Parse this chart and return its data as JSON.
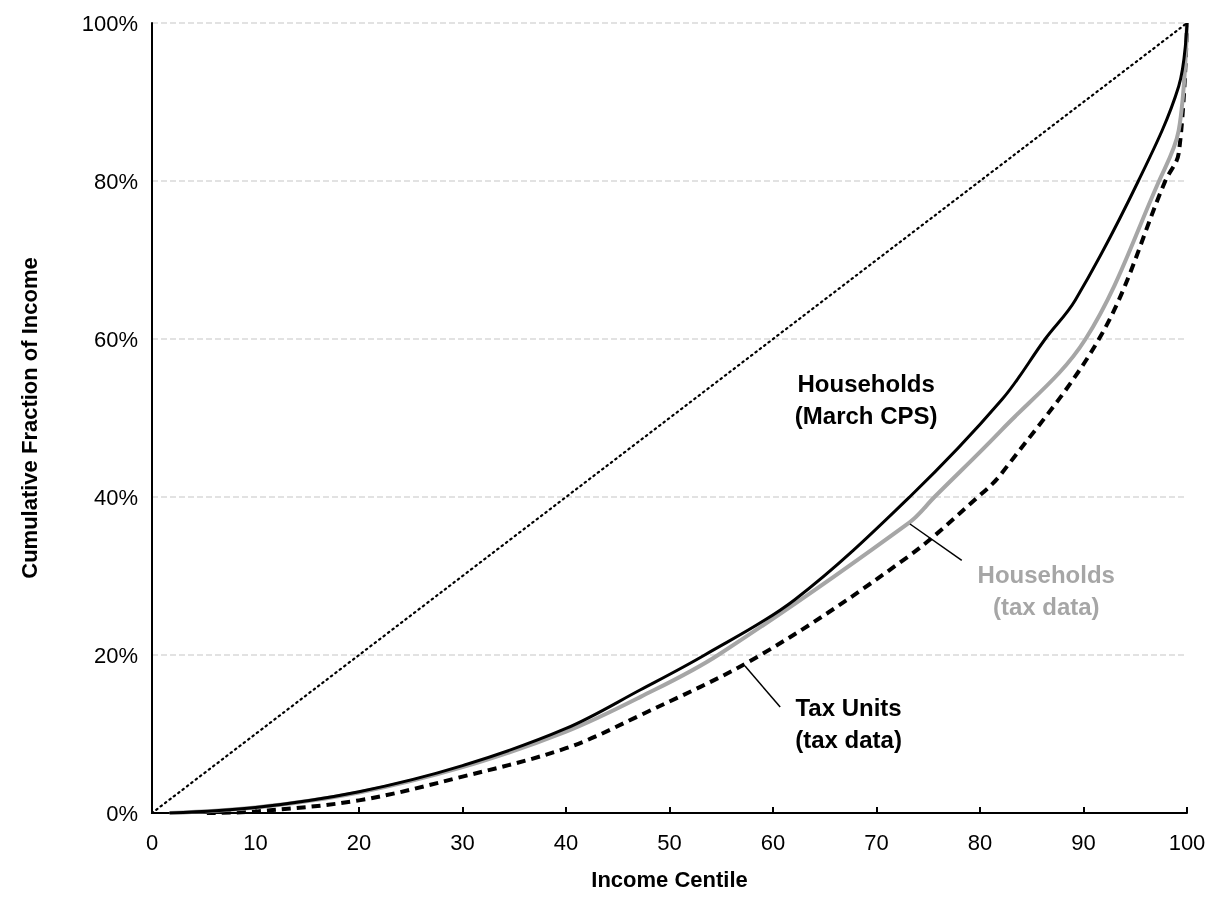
{
  "chart_data": {
    "type": "line",
    "xlabel": "Income Centile",
    "ylabel": "Cumulative Fraction of Income",
    "xlim": [
      0,
      100
    ],
    "xticks": [
      0,
      10,
      20,
      30,
      40,
      50,
      60,
      70,
      80,
      90,
      100
    ],
    "ylim": [
      0,
      100
    ],
    "yticks": [
      {
        "value": 0,
        "label": "0%"
      },
      {
        "value": 20,
        "label": "20%"
      },
      {
        "value": 40,
        "label": "40%"
      },
      {
        "value": 60,
        "label": "60%"
      },
      {
        "value": 80,
        "label": "80%"
      },
      {
        "value": 100,
        "label": "100%"
      }
    ],
    "grid": "y",
    "legend": false,
    "marker": "none",
    "series": [
      {
        "color": "#000000",
        "line_style": "dotted",
        "x": [
          0,
          100
        ],
        "values": [
          0,
          100
        ]
      },
      {
        "name": "Households\n(March CPS)",
        "color": "#000000",
        "line_style": "solid",
        "x": [
          1.7,
          10,
          20,
          30,
          40,
          47.2,
          53.4,
          62.1,
          73.2,
          82.1,
          86.3,
          89.2,
          95.3,
          99.2,
          100
        ],
        "values": [
          0,
          0.7,
          2.7,
          6.0,
          10.7,
          15.6,
          20,
          27,
          40,
          52.3,
          60,
          64.9,
          80,
          92,
          100
        ]
      },
      {
        "name": "Households\n(tax data)",
        "color": "#a6a6a6",
        "line_style": "solid",
        "x": [
          1.7,
          10,
          20,
          30,
          40,
          47.2,
          54.7,
          73.2,
          75.6,
          82.1,
          90.2,
          97.3,
          99.2,
          100
        ],
        "values": [
          0,
          0.7,
          2.6,
          5.8,
          10.3,
          14.7,
          20,
          36.8,
          40,
          48.5,
          60,
          80,
          86.4,
          100
        ]
      },
      {
        "name": "Tax Units\n(tax data)",
        "color": "#000000",
        "line_style": "dashed",
        "x": [
          5.3,
          10,
          20,
          30,
          40,
          46.9,
          58.8,
          73.0,
          79.8,
          82.1,
          91.8,
          97.9,
          99.2,
          100
        ],
        "values": [
          0,
          0.2,
          1.6,
          4.6,
          8.2,
          12.2,
          20,
          32.4,
          40,
          43.0,
          60.7,
          80,
          83.5,
          100
        ]
      }
    ]
  }
}
